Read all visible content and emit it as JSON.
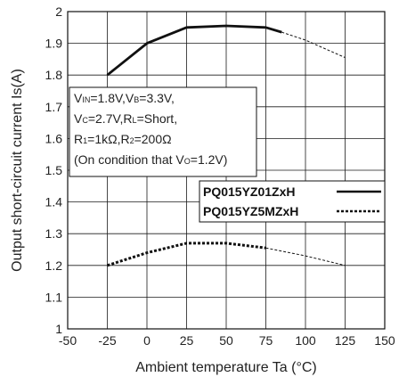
{
  "chart_data": {
    "type": "line",
    "xlabel": "Ambient temperature Ta (°C)",
    "ylabel": "Output short-circuit current Is(A)",
    "xlim": [
      -50,
      150
    ],
    "ylim": [
      1,
      2
    ],
    "xticks": [
      "-50",
      "-25",
      "0",
      "25",
      "50",
      "75",
      "100",
      "125",
      "150"
    ],
    "yticks": [
      "1",
      "1.1",
      "1.2",
      "1.3",
      "1.4",
      "1.5",
      "1.6",
      "1.7",
      "1.8",
      "1.9",
      "2"
    ],
    "grid": true,
    "legend_position": "right",
    "conditions": {
      "line1": {
        "p1": "V",
        "s1": "IN",
        "p2": "=1.8V,V",
        "s2": "B",
        "p3": "=3.3V,"
      },
      "line2": {
        "p1": "V",
        "s1": "C",
        "p2": "=2.7V,R",
        "s2": "L",
        "p3": "=Short,"
      },
      "line3": {
        "p1": "R",
        "s1": "1",
        "p2": "=1kΩ,R",
        "s2": "2",
        "p3": "=200Ω"
      },
      "line4": {
        "p1": "(On condition that V",
        "s1": "O",
        "p2": "=1.2V)"
      }
    },
    "series": [
      {
        "name": "PQ015YZ01ZxH",
        "style": "solid",
        "color": "#111111",
        "measured": {
          "x": [
            -25,
            0,
            25,
            50,
            75,
            85
          ],
          "y": [
            1.8,
            1.9,
            1.95,
            1.955,
            1.95,
            1.935
          ]
        },
        "extrapolated": {
          "x": [
            85,
            100,
            125
          ],
          "y": [
            1.935,
            1.91,
            1.855
          ]
        }
      },
      {
        "name": "PQ015YZ5MZxH",
        "style": "dotted",
        "color": "#111111",
        "measured": {
          "x": [
            -25,
            0,
            25,
            50,
            75
          ],
          "y": [
            1.2,
            1.24,
            1.27,
            1.27,
            1.255
          ]
        },
        "extrapolated": {
          "x": [
            75,
            100,
            125
          ],
          "y": [
            1.255,
            1.23,
            1.2
          ]
        }
      }
    ]
  }
}
